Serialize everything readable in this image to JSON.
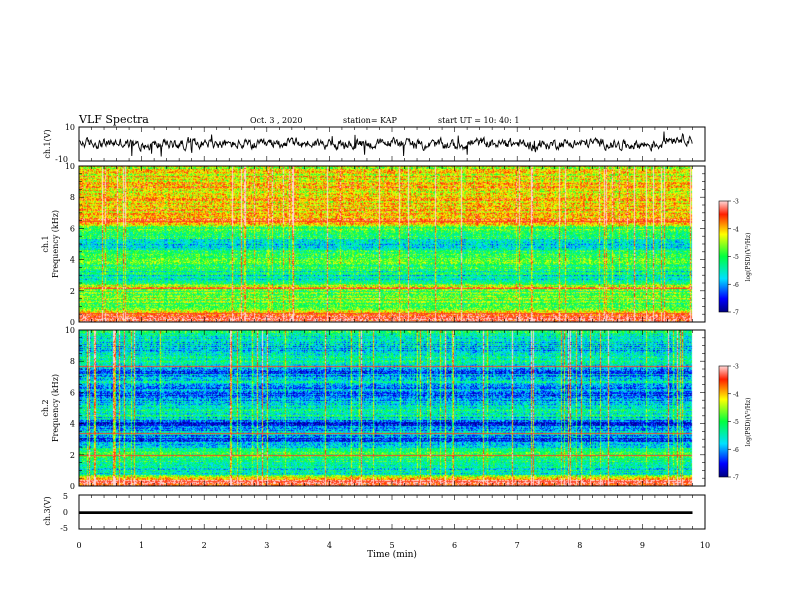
{
  "header": {
    "title": "VLF Spectra",
    "date": "Oct. 3 , 2020",
    "station": "station= KAP",
    "start": "start UT =   10: 40: 1"
  },
  "chart_data": [
    {
      "type": "line",
      "name": "ch1-waveform",
      "ylabel": "ch.1(V)",
      "ylim": [
        -10,
        10
      ],
      "yticks": [
        "10",
        "-10"
      ],
      "xlim": [
        0,
        10
      ],
      "data_end_min": 9.8,
      "line_color": "#000000"
    },
    {
      "type": "heatmap",
      "name": "ch1-spectrogram",
      "ylabel_line1": "ch.1",
      "ylabel_line2": "Frequency (kHz)",
      "ylim": [
        0,
        10
      ],
      "yticks": [
        "0",
        "2",
        "4",
        "6",
        "8",
        "10"
      ],
      "xlim": [
        0,
        10
      ],
      "data_end_min": 9.8,
      "colorbar": {
        "label": "log(PSD)(V²/Hz)",
        "ticks": [
          "-3",
          "-4",
          "-5",
          "-6",
          "-7"
        ],
        "range": [
          -7,
          -3
        ]
      },
      "frequency_profile": [
        {
          "f": 0.0,
          "v": -3.0
        },
        {
          "f": 0.5,
          "v": -3.4
        },
        {
          "f": 1.0,
          "v": -5.2
        },
        {
          "f": 1.6,
          "v": -4.6
        },
        {
          "f": 2.0,
          "v": -4.9
        },
        {
          "f": 2.2,
          "v": -4.0
        },
        {
          "f": 2.6,
          "v": -5.3
        },
        {
          "f": 3.0,
          "v": -5.6
        },
        {
          "f": 3.6,
          "v": -5.0
        },
        {
          "f": 4.0,
          "v": -4.9
        },
        {
          "f": 4.6,
          "v": -5.3
        },
        {
          "f": 5.0,
          "v": -5.7
        },
        {
          "f": 5.6,
          "v": -5.0
        },
        {
          "f": 6.2,
          "v": -4.6
        },
        {
          "f": 6.5,
          "v": -3.6
        },
        {
          "f": 7.0,
          "v": -4.0
        },
        {
          "f": 8.0,
          "v": -4.0
        },
        {
          "f": 9.0,
          "v": -4.1
        },
        {
          "f": 10.0,
          "v": -4.3
        }
      ],
      "line_frequencies_khz": [
        0.3,
        0.6,
        2.2,
        6.5
      ]
    },
    {
      "type": "heatmap",
      "name": "ch2-spectrogram",
      "ylabel_line1": "ch.2",
      "ylabel_line2": "Frequency (kHz)",
      "ylim": [
        0,
        10
      ],
      "yticks": [
        "0",
        "2",
        "4",
        "6",
        "8",
        "10"
      ],
      "xlim": [
        0,
        10
      ],
      "data_end_min": 9.8,
      "colorbar": {
        "label": "log(PSD)(V²/Hz)",
        "ticks": [
          "-3",
          "-4",
          "-5",
          "-6",
          "-7"
        ],
        "range": [
          -7,
          -3
        ]
      },
      "frequency_profile": [
        {
          "f": 0.0,
          "v": -3.2
        },
        {
          "f": 0.4,
          "v": -3.5
        },
        {
          "f": 0.8,
          "v": -5.5
        },
        {
          "f": 1.4,
          "v": -5.6
        },
        {
          "f": 2.0,
          "v": -4.8
        },
        {
          "f": 2.5,
          "v": -5.6
        },
        {
          "f": 3.0,
          "v": -6.3
        },
        {
          "f": 3.5,
          "v": -5.6
        },
        {
          "f": 4.0,
          "v": -6.6
        },
        {
          "f": 4.6,
          "v": -5.2
        },
        {
          "f": 5.2,
          "v": -5.8
        },
        {
          "f": 6.0,
          "v": -6.3
        },
        {
          "f": 6.8,
          "v": -5.4
        },
        {
          "f": 7.4,
          "v": -6.4
        },
        {
          "f": 8.0,
          "v": -5.3
        },
        {
          "f": 8.8,
          "v": -5.8
        },
        {
          "f": 9.4,
          "v": -5.5
        },
        {
          "f": 10.0,
          "v": -5.2
        }
      ],
      "line_frequencies_khz": [
        0.3,
        2.0,
        3.4,
        7.7
      ]
    },
    {
      "type": "line",
      "name": "ch3-waveform",
      "ylabel": "ch.3(V)",
      "ylim": [
        -5,
        5
      ],
      "yticks": [
        "5",
        "0",
        "-5"
      ],
      "xlim": [
        0,
        10
      ],
      "xlabel": "Time (min)",
      "xticks": [
        "0",
        "1",
        "2",
        "3",
        "4",
        "5",
        "6",
        "7",
        "8",
        "9",
        "10"
      ],
      "data_end_min": 9.8,
      "band_range_v": [
        -0.6,
        0.2
      ],
      "line_color": "#000000"
    }
  ]
}
